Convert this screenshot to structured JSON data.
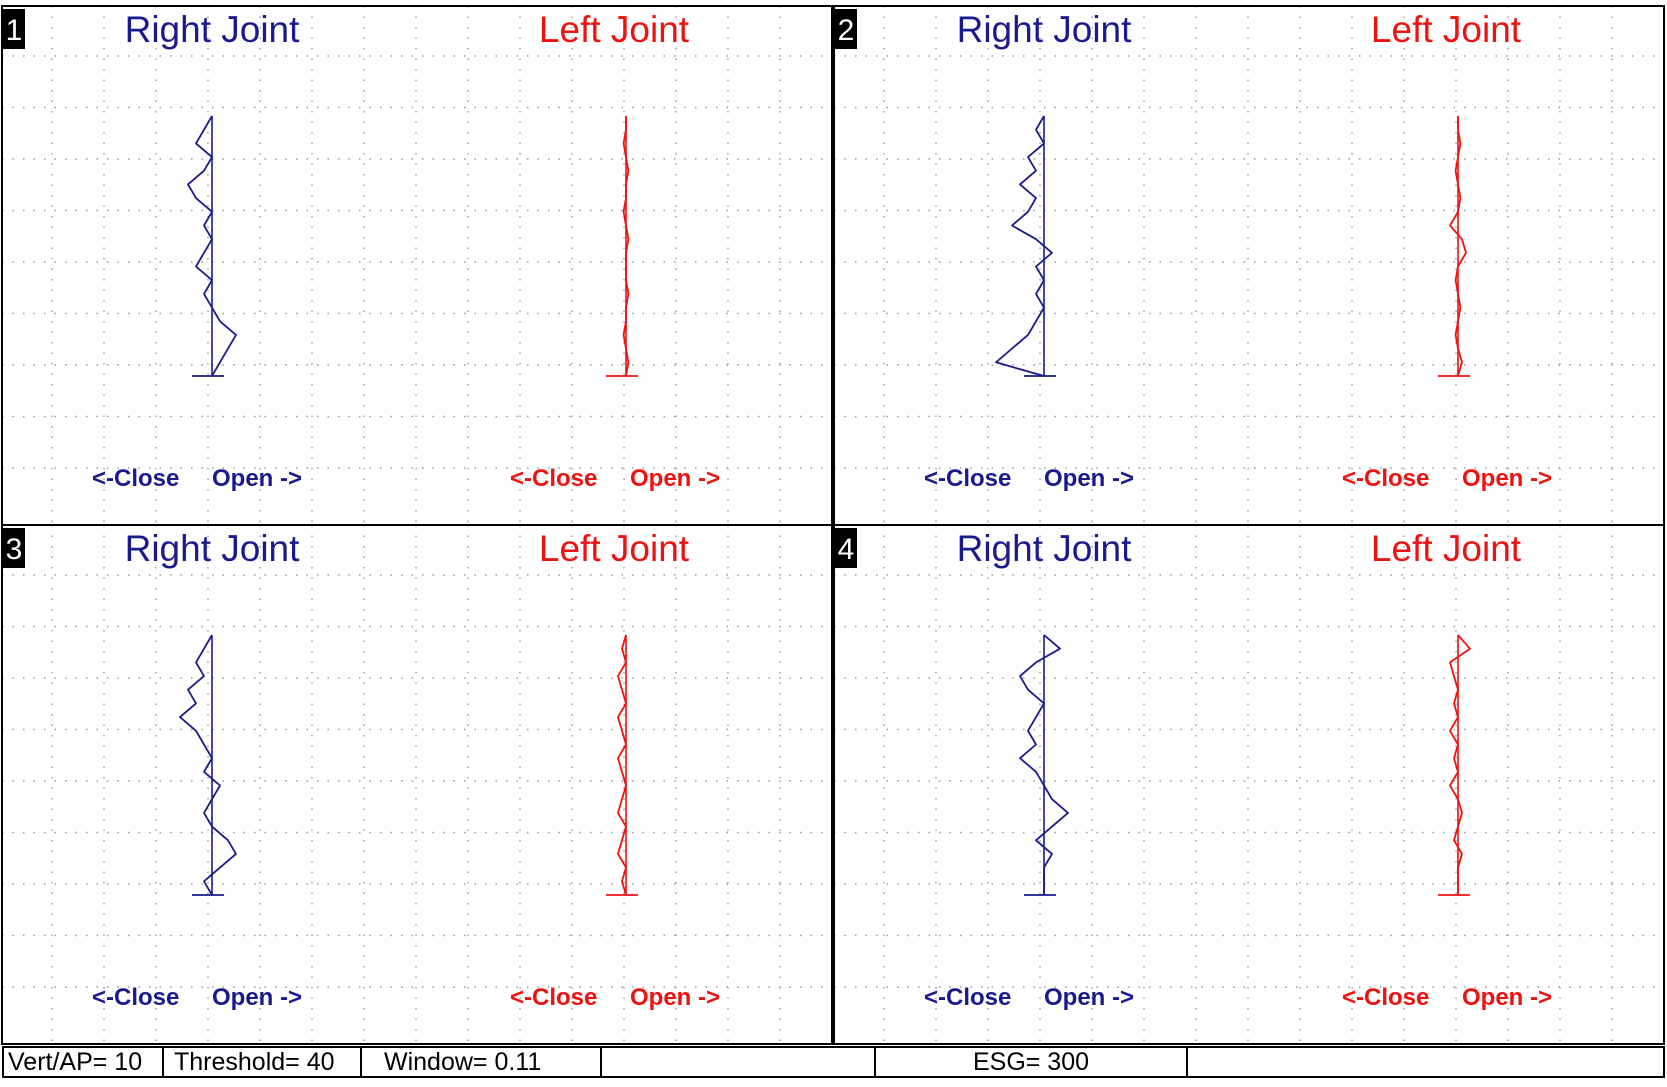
{
  "colors": {
    "right": "#1a1a8c",
    "left": "#ee1111",
    "grid": "#9a9a9a",
    "frame": "#000000"
  },
  "chart_data": [
    {
      "type": "line",
      "panel": "1",
      "right_title": "Right Joint",
      "left_title": "Left Joint",
      "axis_left": "<-Close",
      "axis_right": "Open ->",
      "grid": true,
      "series": [
        {
          "joint": "right",
          "values": [
            0,
            -1,
            -2,
            0,
            -1,
            -3,
            -2,
            0,
            -1,
            0,
            -1,
            -2,
            0,
            -1,
            0,
            1,
            3,
            2,
            1,
            0
          ]
        },
        {
          "joint": "left",
          "values": [
            0,
            0,
            -0.3,
            0,
            0.3,
            0,
            0,
            -0.3,
            0,
            0.3,
            0,
            0,
            0,
            0.3,
            0,
            0,
            -0.3,
            0,
            0.3,
            0
          ]
        }
      ]
    },
    {
      "type": "line",
      "panel": "2",
      "right_title": "Right Joint",
      "left_title": "Left Joint",
      "axis_left": "<-Close",
      "axis_right": "Open ->",
      "grid": true,
      "series": [
        {
          "joint": "right",
          "values": [
            0,
            -1,
            0,
            -2,
            -1,
            -3,
            -1,
            -2,
            -4,
            -1,
            1,
            -1,
            0,
            -1,
            0,
            -1,
            -2,
            -4,
            -6,
            0
          ]
        },
        {
          "joint": "left",
          "values": [
            0,
            0,
            0.3,
            0,
            -0.3,
            0,
            0.3,
            0,
            -1,
            0.5,
            1,
            0,
            -0.3,
            0,
            0.3,
            0,
            -0.3,
            0,
            0.5,
            0
          ]
        }
      ]
    },
    {
      "type": "line",
      "panel": "3",
      "right_title": "Right Joint",
      "left_title": "Left Joint",
      "axis_left": "<-Close",
      "axis_right": "Open ->",
      "grid": true,
      "series": [
        {
          "joint": "right",
          "values": [
            0,
            -1,
            -2,
            -1,
            -3,
            -2,
            -4,
            -2,
            -1,
            0,
            -1,
            1,
            0,
            -1,
            0,
            2,
            3,
            1,
            -1,
            0
          ]
        },
        {
          "joint": "left",
          "values": [
            0,
            -0.5,
            0,
            -1,
            -0.5,
            0,
            -1,
            -0.5,
            0,
            -1,
            -0.5,
            0,
            -0.5,
            -1,
            0,
            -0.5,
            -1,
            0,
            -0.5,
            0
          ]
        }
      ]
    },
    {
      "type": "line",
      "panel": "4",
      "right_title": "Right Joint",
      "left_title": "Left Joint",
      "axis_left": "<-Close",
      "axis_right": "Open ->",
      "grid": true,
      "series": [
        {
          "joint": "right",
          "values": [
            0,
            2,
            -1,
            -3,
            -2,
            0,
            -1,
            -2,
            -1,
            -3,
            -1,
            0,
            1,
            3,
            1,
            -1,
            1,
            0,
            0,
            0
          ]
        },
        {
          "joint": "left",
          "values": [
            0,
            1.5,
            -1,
            -0.5,
            0,
            -0.5,
            0,
            -1,
            0,
            -0.5,
            0,
            -1,
            0,
            0.5,
            0,
            -0.5,
            0.5,
            0,
            0,
            0
          ]
        }
      ]
    }
  ],
  "status": {
    "vert_ap": "Vert/AP= 10",
    "threshold": "Threshold= 40",
    "window": "Window= 0.11",
    "blank1": "",
    "esg": "ESG= 300",
    "blank2": ""
  }
}
